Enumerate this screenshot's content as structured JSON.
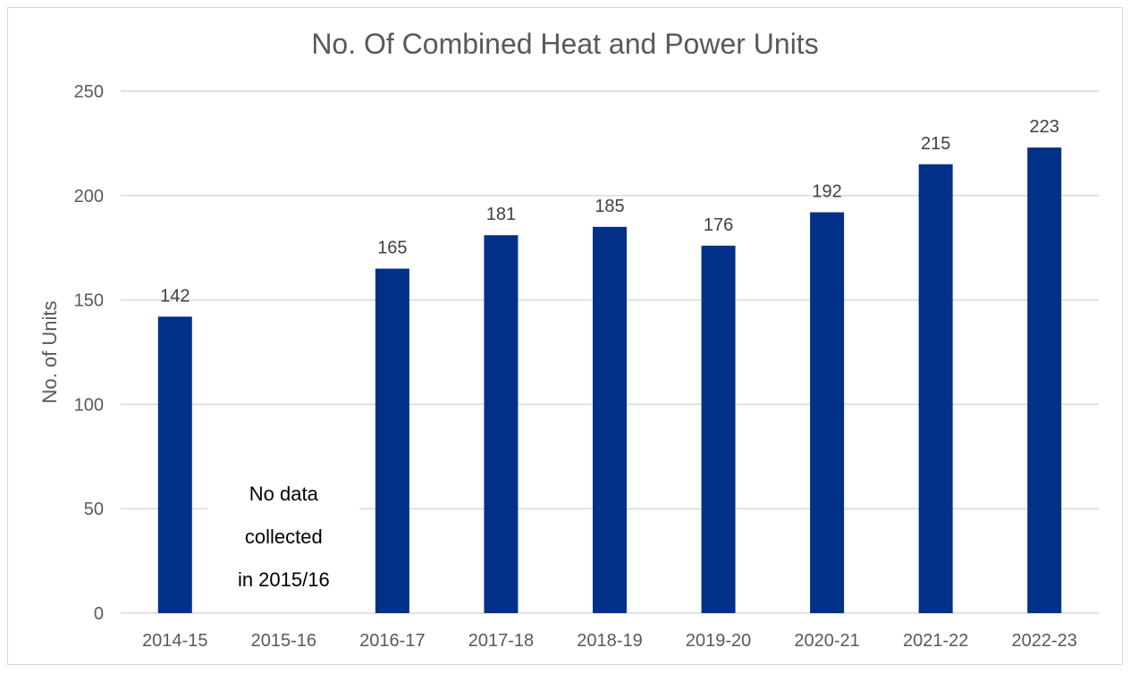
{
  "chart_data": {
    "type": "bar",
    "title": "No. Of Combined Heat and Power Units",
    "xlabel": "",
    "ylabel": "No. of Units",
    "categories": [
      "2014-15",
      "2015-16",
      "2016-17",
      "2017-18",
      "2018-19",
      "2019-20",
      "2020-21",
      "2021-22",
      "2022-23"
    ],
    "values": [
      142,
      null,
      165,
      181,
      185,
      176,
      192,
      215,
      223
    ],
    "data_labels": [
      "142",
      "",
      "165",
      "181",
      "185",
      "176",
      "192",
      "215",
      "223"
    ],
    "ylim": [
      0,
      250
    ],
    "yticks": [
      0,
      50,
      100,
      150,
      200,
      250
    ],
    "ytick_labels": [
      "0",
      "50",
      "100",
      "150",
      "200",
      "250"
    ],
    "grid": true,
    "legend": "none",
    "bar_color": "#003087",
    "grid_color": "#d9d9d9",
    "annotation": {
      "category": "2015-16",
      "lines": [
        "No data",
        "collected",
        "in 2015/16"
      ]
    }
  }
}
